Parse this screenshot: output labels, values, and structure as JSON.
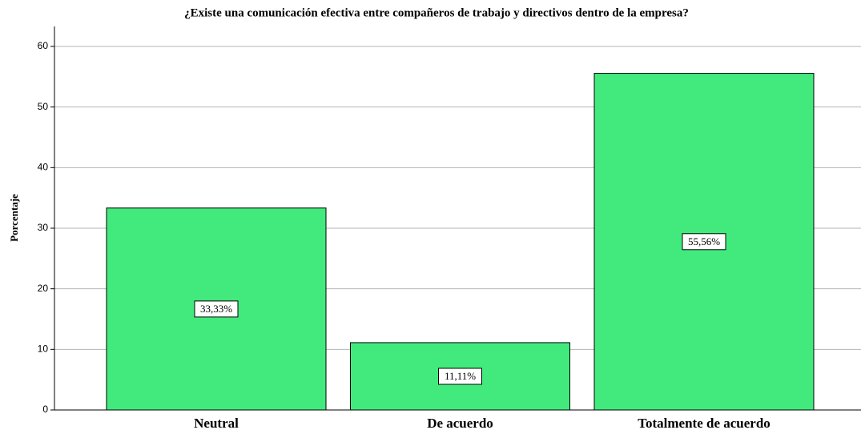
{
  "chart_data": {
    "type": "bar",
    "title": "¿Existe una comunicación efectiva entre compañeros de trabajo y directivos dentro de la empresa?",
    "y_label": "Porcentaje",
    "categories": [
      "Neutral",
      "De acuerdo",
      "Totalmente de acuerdo"
    ],
    "values": [
      33.33,
      11.11,
      55.56
    ],
    "value_labels": [
      "33,33%",
      "11,11%",
      "55,56%"
    ],
    "color": "#42ea7d",
    "ylim": [
      0,
      63.3
    ],
    "yticks": [
      0,
      10,
      20,
      30,
      40,
      50,
      60
    ],
    "grid": true
  }
}
